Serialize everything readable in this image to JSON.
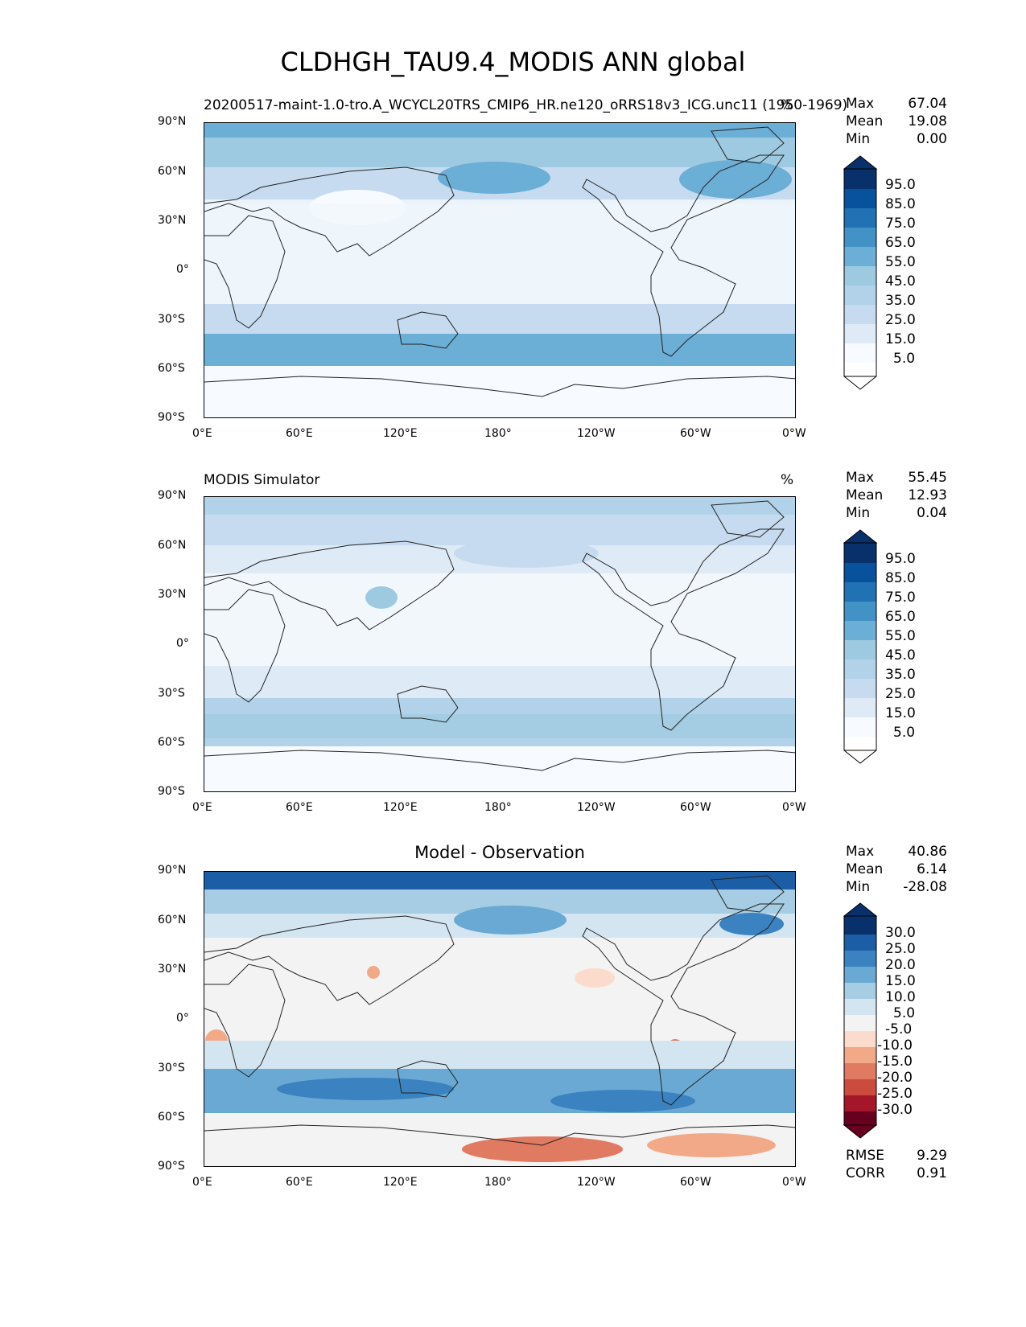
{
  "figure_title": "CLDHGH_TAU9.4_MODIS ANN global",
  "x_ticks": [
    "0°E",
    "60°E",
    "120°E",
    "180°",
    "120°W",
    "60°W",
    "0°W"
  ],
  "y_ticks": [
    "90°N",
    "60°N",
    "30°N",
    "0°",
    "30°S",
    "60°S",
    "90°S"
  ],
  "panels": [
    {
      "title": "20200517-maint-1.0-tro.A_WCYCL20TRS_CMIP6_HR.ne120_oRRS18v3_ICG.unc11 (1950-1969)",
      "units": "%",
      "stats": [
        {
          "label": "Max",
          "value": "67.04"
        },
        {
          "label": "Mean",
          "value": "19.08"
        },
        {
          "label": "Min",
          "value": "0.00"
        }
      ],
      "colorbar_labels": [
        "95.0",
        "85.0",
        "75.0",
        "65.0",
        "55.0",
        "45.0",
        "35.0",
        "25.0",
        "15.0",
        "5.0"
      ]
    },
    {
      "title": "MODIS Simulator",
      "units": "%",
      "stats": [
        {
          "label": "Max",
          "value": "55.45"
        },
        {
          "label": "Mean",
          "value": "12.93"
        },
        {
          "label": "Min",
          "value": "0.04"
        }
      ],
      "colorbar_labels": [
        "95.0",
        "85.0",
        "75.0",
        "65.0",
        "55.0",
        "45.0",
        "35.0",
        "25.0",
        "15.0",
        "5.0"
      ]
    },
    {
      "title": "Model - Observation",
      "units": "",
      "stats": [
        {
          "label": "Max",
          "value": "40.86"
        },
        {
          "label": "Mean",
          "value": "6.14"
        },
        {
          "label": "Min",
          "value": "-28.08"
        }
      ],
      "colorbar_labels": [
        "30.0",
        "25.0",
        "20.0",
        "15.0",
        "10.0",
        "5.0",
        "-5.0",
        "-10.0",
        "-15.0",
        "-20.0",
        "-25.0",
        "-30.0"
      ],
      "metrics": [
        {
          "label": "RMSE",
          "value": "9.29"
        },
        {
          "label": "CORR",
          "value": "0.91"
        }
      ]
    }
  ],
  "colors": {
    "blues": [
      "#f7fbff",
      "#deebf7",
      "#c6dbef",
      "#b1d2e8",
      "#9ecae1",
      "#6baed6",
      "#4292c6",
      "#2171b5",
      "#08519c",
      "#08306b"
    ],
    "diverging": [
      "#08306b",
      "#1c5ea6",
      "#3a83c0",
      "#6aa9d3",
      "#a6cde3",
      "#d3e5f1",
      "#f3f3f3",
      "#fbdccc",
      "#f2a987",
      "#e07a60",
      "#cb4b3e",
      "#a5162a",
      "#67001f"
    ],
    "land_outline": "#222222"
  }
}
